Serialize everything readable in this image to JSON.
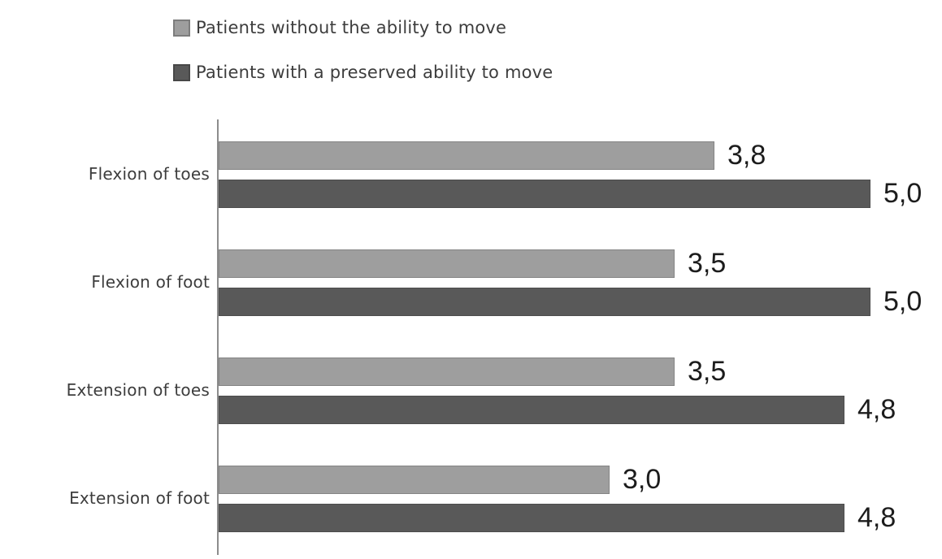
{
  "chart_data": {
    "type": "bar",
    "orientation": "horizontal",
    "title": "",
    "xlabel": "",
    "ylabel": "",
    "xlim": [
      0,
      5
    ],
    "grid": false,
    "legend_position": "top-left",
    "value_label_style": "comma-decimal",
    "categories": [
      "Flexion of toes",
      "Flexion of foot",
      "Extension of toes",
      "Extension of foot"
    ],
    "series": [
      {
        "name": "Patients without the ability to move",
        "color": "#9e9e9e",
        "border_color": "#848484",
        "values": [
          3.8,
          3.5,
          3.5,
          3.0
        ],
        "labels": [
          "3,8",
          "3,5",
          "3,5",
          "3,0"
        ]
      },
      {
        "name": "Patients with a preserved ability to move",
        "color": "#595959",
        "border_color": "#4d4d4d",
        "values": [
          5.0,
          5.0,
          4.8,
          4.8
        ],
        "labels": [
          "5,0",
          "5,0",
          "4,8",
          "4,8"
        ]
      }
    ]
  }
}
